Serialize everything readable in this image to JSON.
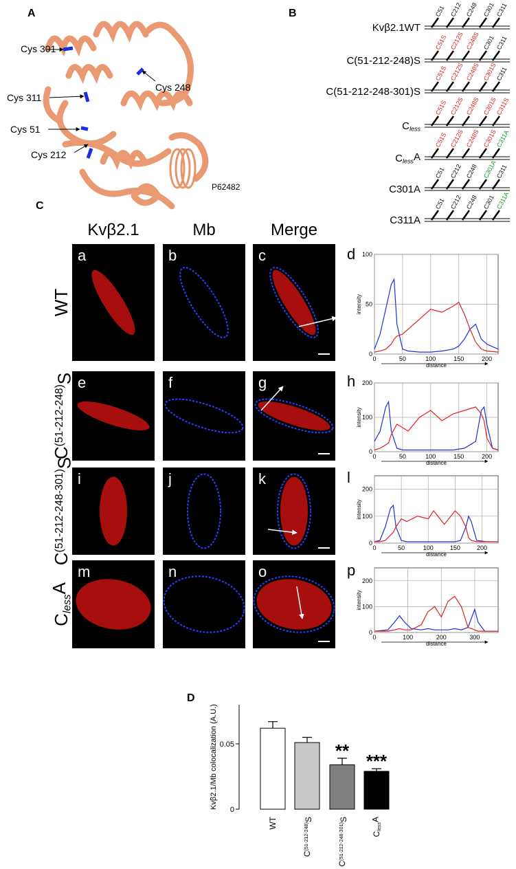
{
  "panel_a": {
    "letter": "A",
    "labels": [
      "Cys 301",
      "Cys 248",
      "Cys 311",
      "Cys 51",
      "Cys 212"
    ],
    "accession": "P62482"
  },
  "panel_b": {
    "letter": "B",
    "constructs": [
      {
        "name": {
          "main": "Kvβ2.1WT"
        },
        "sites": [
          {
            "text": "C51",
            "color": "#111111"
          },
          {
            "text": "C212",
            "color": "#111111"
          },
          {
            "text": "C248",
            "color": "#111111"
          },
          {
            "text": "C301",
            "color": "#111111"
          },
          {
            "text": "C311",
            "color": "#111111"
          }
        ]
      },
      {
        "name": {
          "main": "C(51-212-248)S"
        },
        "sites": [
          {
            "text": "C51S",
            "color": "#e3201c"
          },
          {
            "text": "C212S",
            "color": "#e3201c"
          },
          {
            "text": "C248S",
            "color": "#e3201c"
          },
          {
            "text": "C301",
            "color": "#111111"
          },
          {
            "text": "C311",
            "color": "#111111"
          }
        ]
      },
      {
        "name": {
          "main": "C(51-212-248-301)S"
        },
        "sites": [
          {
            "text": "C51S",
            "color": "#e3201c"
          },
          {
            "text": "C212S",
            "color": "#e3201c"
          },
          {
            "text": "C248S",
            "color": "#e3201c"
          },
          {
            "text": "C301S",
            "color": "#e3201c"
          },
          {
            "text": "C311",
            "color": "#111111"
          }
        ]
      },
      {
        "name": {
          "main": "C",
          "sub": "less"
        },
        "sites": [
          {
            "text": "C51S",
            "color": "#e3201c"
          },
          {
            "text": "C212S",
            "color": "#e3201c"
          },
          {
            "text": "C248S",
            "color": "#e3201c"
          },
          {
            "text": "C301S",
            "color": "#e3201c"
          },
          {
            "text": "C311S",
            "color": "#e3201c"
          }
        ]
      },
      {
        "name": {
          "main": "C",
          "sub": "less",
          "after": "A"
        },
        "sites": [
          {
            "text": "C51S",
            "color": "#e3201c"
          },
          {
            "text": "C212S",
            "color": "#e3201c"
          },
          {
            "text": "C248S",
            "color": "#e3201c"
          },
          {
            "text": "C301S",
            "color": "#e3201c"
          },
          {
            "text": "C311A",
            "color": "#1a9a2a"
          }
        ]
      },
      {
        "name": {
          "main": "C301A"
        },
        "sites": [
          {
            "text": "C51",
            "color": "#111111"
          },
          {
            "text": "C212",
            "color": "#111111"
          },
          {
            "text": "C248",
            "color": "#111111"
          },
          {
            "text": "C301A",
            "color": "#1a9a2a"
          },
          {
            "text": "C311",
            "color": "#111111"
          }
        ]
      },
      {
        "name": {
          "main": "C311A"
        },
        "sites": [
          {
            "text": "C51",
            "color": "#111111"
          },
          {
            "text": "C212",
            "color": "#111111"
          },
          {
            "text": "C248",
            "color": "#111111"
          },
          {
            "text": "C301",
            "color": "#111111"
          },
          {
            "text": "C311A",
            "color": "#1a9a2a"
          }
        ]
      }
    ]
  },
  "panel_c": {
    "letter": "C",
    "columns": [
      "Kvβ2.1",
      "Mb",
      "Merge"
    ],
    "rows": [
      {
        "label": {
          "main": "WT"
        },
        "panels": [
          "a",
          "b",
          "c"
        ],
        "profile_letter": "d"
      },
      {
        "label": {
          "main": "C",
          "sup": "(51-212-248)",
          "after": "S"
        },
        "panels": [
          "e",
          "f",
          "g"
        ],
        "profile_letter": "h"
      },
      {
        "label": {
          "main": "C",
          "sup": "(51-212-248-301)",
          "after": "S"
        },
        "panels": [
          "i",
          "j",
          "k"
        ],
        "profile_letter": "l"
      },
      {
        "label": {
          "main": "C",
          "sub": "less",
          "after": "A"
        },
        "panels": [
          "m",
          "n",
          "o"
        ],
        "profile_letter": "p"
      }
    ]
  },
  "panel_d": {
    "letter": "D"
  },
  "chart_data": [
    {
      "type": "line",
      "xlabel": "distance",
      "ylabel": "intensity",
      "xlim": [
        0,
        220
      ],
      "ylim": [
        0,
        100
      ],
      "xticks": [
        0,
        50,
        100,
        150,
        200
      ],
      "yticks": [
        0,
        50,
        100
      ],
      "grid": true,
      "x": [
        0,
        10,
        20,
        30,
        35,
        40,
        50,
        60,
        80,
        100,
        120,
        140,
        150,
        160,
        170,
        180,
        190,
        200,
        220
      ],
      "series": [
        {
          "color": "#1f2fd8",
          "values": [
            5,
            20,
            45,
            70,
            75,
            30,
            5,
            3,
            2,
            2,
            3,
            5,
            8,
            15,
            25,
            30,
            15,
            10,
            5
          ]
        },
        {
          "color": "#e3201c",
          "values": [
            2,
            3,
            5,
            10,
            15,
            18,
            20,
            25,
            35,
            45,
            42,
            48,
            52,
            40,
            25,
            12,
            5,
            3,
            2
          ]
        }
      ]
    },
    {
      "type": "line",
      "xlabel": "distance",
      "ylabel": "intensity",
      "xlim": [
        0,
        220
      ],
      "ylim": [
        0,
        200
      ],
      "xticks": [
        0,
        50,
        100,
        150,
        200
      ],
      "yticks": [
        0,
        100,
        200
      ],
      "grid": true,
      "x": [
        0,
        10,
        20,
        25,
        30,
        40,
        50,
        60,
        80,
        100,
        120,
        140,
        160,
        180,
        190,
        195,
        200,
        210,
        220
      ],
      "series": [
        {
          "color": "#1f2fd8",
          "values": [
            30,
            60,
            130,
            145,
            60,
            10,
            5,
            5,
            5,
            5,
            5,
            5,
            10,
            30,
            120,
            130,
            80,
            10,
            5
          ]
        },
        {
          "color": "#e3201c",
          "values": [
            5,
            10,
            20,
            25,
            50,
            80,
            70,
            60,
            100,
            120,
            90,
            110,
            120,
            130,
            110,
            90,
            40,
            10,
            5
          ]
        }
      ]
    },
    {
      "type": "line",
      "xlabel": "distance",
      "ylabel": "intensity",
      "xlim": [
        0,
        230
      ],
      "ylim": [
        0,
        250
      ],
      "xticks": [
        0,
        50,
        100,
        150,
        200
      ],
      "yticks": [
        0,
        100,
        200
      ],
      "grid": true,
      "x": [
        0,
        10,
        20,
        30,
        35,
        40,
        50,
        60,
        80,
        100,
        110,
        130,
        150,
        160,
        170,
        175,
        180,
        190,
        210,
        230
      ],
      "series": [
        {
          "color": "#1f2fd8",
          "values": [
            5,
            10,
            60,
            130,
            140,
            60,
            10,
            5,
            5,
            5,
            5,
            5,
            5,
            10,
            60,
            100,
            80,
            10,
            5,
            5
          ]
        },
        {
          "color": "#e3201c",
          "values": [
            5,
            5,
            10,
            30,
            40,
            60,
            90,
            80,
            100,
            90,
            120,
            70,
            120,
            100,
            60,
            20,
            10,
            5,
            5,
            5
          ]
        }
      ]
    },
    {
      "type": "line",
      "xlabel": "distance",
      "ylabel": "intensity",
      "xlim": [
        0,
        370
      ],
      "ylim": [
        0,
        250
      ],
      "xticks": [
        0,
        100,
        200,
        300
      ],
      "yticks": [
        0,
        100,
        200
      ],
      "grid": true,
      "x": [
        0,
        40,
        60,
        75,
        90,
        110,
        140,
        160,
        180,
        200,
        220,
        240,
        260,
        280,
        300,
        310,
        330,
        370
      ],
      "series": [
        {
          "color": "#1f2fd8",
          "values": [
            5,
            10,
            40,
            65,
            40,
            15,
            10,
            15,
            10,
            10,
            10,
            15,
            10,
            20,
            90,
            40,
            5,
            5
          ]
        },
        {
          "color": "#e3201c",
          "values": [
            5,
            5,
            10,
            15,
            10,
            10,
            30,
            80,
            100,
            60,
            120,
            140,
            100,
            20,
            10,
            5,
            5,
            5
          ]
        }
      ]
    },
    {
      "type": "bar",
      "ylabel": "Kvβ2.1/Mb colocalization (A.U.)",
      "ylim": [
        0,
        0.08
      ],
      "yticks": [
        0,
        0.05
      ],
      "categories": [
        {
          "main": "WT"
        },
        {
          "main": "C",
          "sup": "(51-212-248)",
          "after": "S"
        },
        {
          "main": "C",
          "sup": "(51-212-248-301)",
          "after": "S"
        },
        {
          "main": "C",
          "sub": "less",
          "after": "A"
        }
      ],
      "values": [
        0.062,
        0.051,
        0.034,
        0.029
      ],
      "errors": [
        0.005,
        0.004,
        0.005,
        0.002
      ],
      "colors": [
        "#ffffff",
        "#c8c8c8",
        "#808080",
        "#000000"
      ],
      "annotations": [
        {
          "index": 2,
          "text": "**"
        },
        {
          "index": 3,
          "text": "***"
        }
      ]
    }
  ]
}
